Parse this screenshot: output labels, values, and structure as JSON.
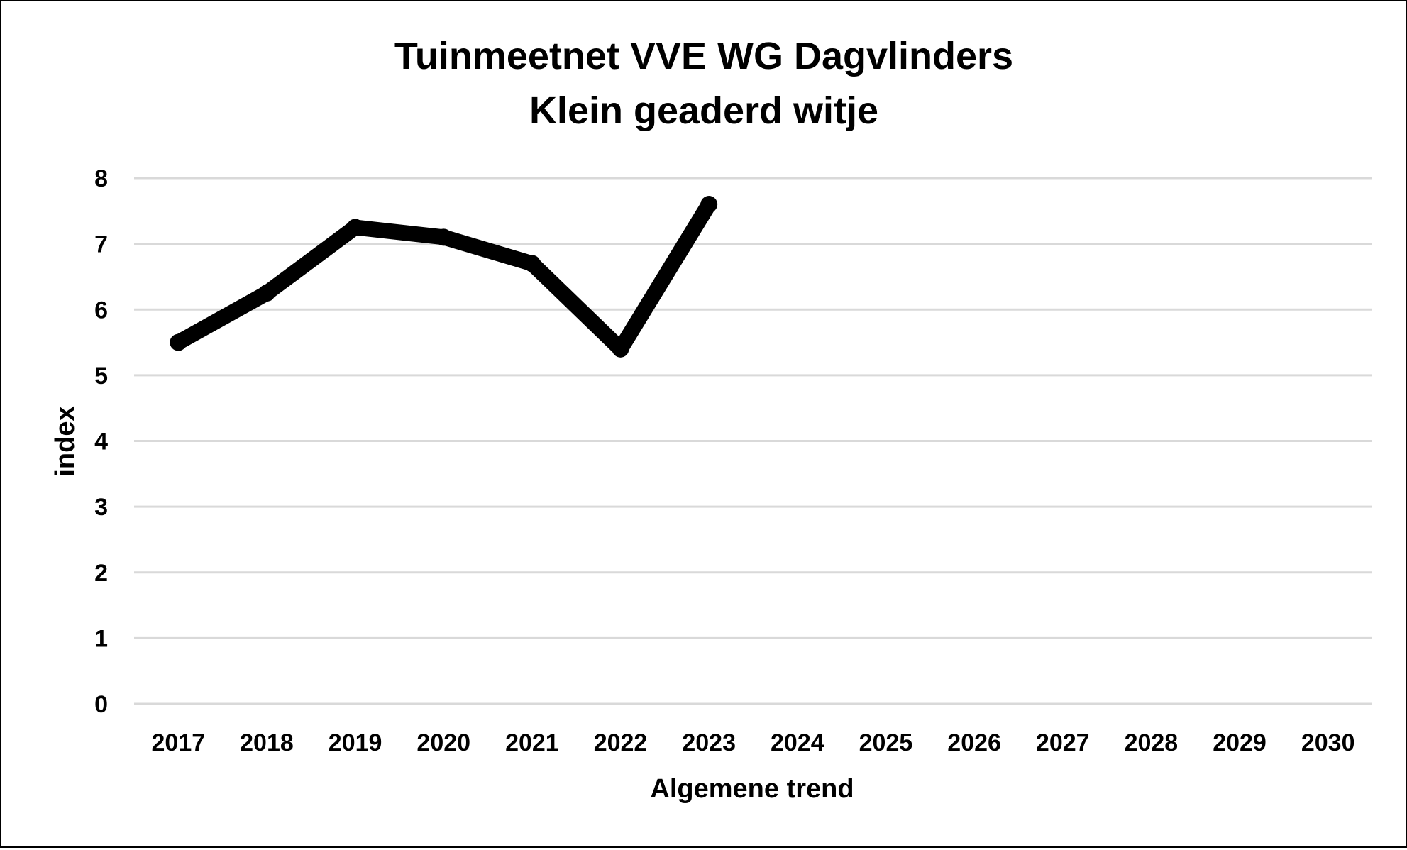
{
  "chart_data": {
    "type": "line",
    "title": "Tuinmeetnet VVE WG Dagvlinders",
    "subtitle": "Klein geaderd witje",
    "xlabel": "Algemene trend",
    "ylabel": "index",
    "categories": [
      "2017",
      "2018",
      "2019",
      "2020",
      "2021",
      "2022",
      "2023",
      "2024",
      "2025",
      "2026",
      "2027",
      "2028",
      "2029",
      "2030"
    ],
    "y_ticks": [
      "0",
      "1",
      "2",
      "3",
      "4",
      "5",
      "6",
      "7",
      "8"
    ],
    "ylim": [
      0,
      8
    ],
    "grid": true,
    "series": [
      {
        "values": [
          5.5,
          6.25,
          7.25,
          7.1,
          6.7,
          5.4,
          7.6,
          null,
          null,
          null,
          null,
          null,
          null,
          null
        ],
        "color": "#000000"
      }
    ],
    "colors": {
      "line": "#000000",
      "grid": "#d9d9d9",
      "background": "#ffffff"
    }
  }
}
